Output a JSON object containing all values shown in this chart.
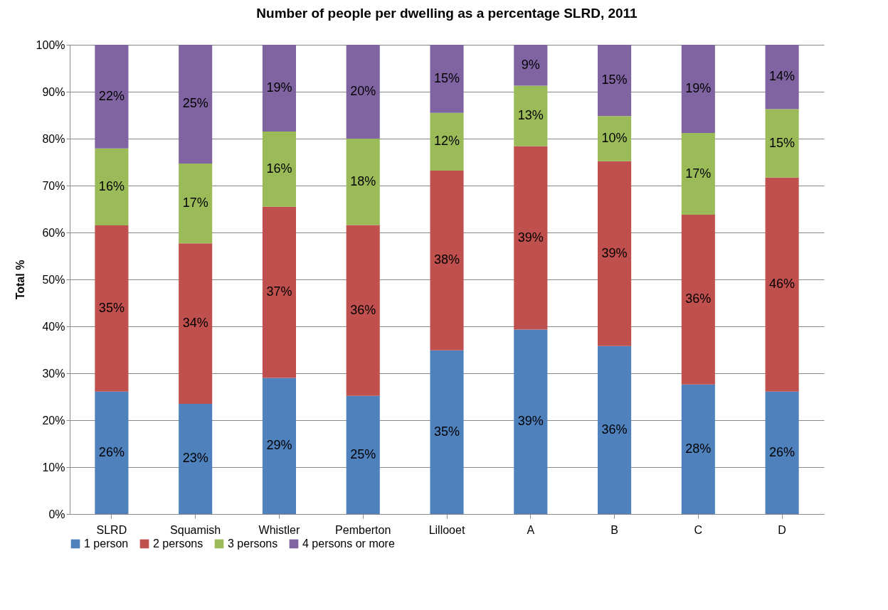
{
  "chart_data": {
    "type": "bar",
    "title": "Number of people per dwelling as a percentage SLRD, 2011",
    "ylabel": "Total %",
    "stacked": true,
    "categories": [
      "SLRD",
      "Squamish",
      "Whistler",
      "Pemberton",
      "Lillooet",
      "A",
      "B",
      "C",
      "D"
    ],
    "series": [
      {
        "name": "1 person",
        "color": "#4f81bd",
        "values": [
          26.1,
          23.5,
          29.0,
          25.2,
          34.9,
          39.3,
          35.8,
          27.6,
          26.1
        ],
        "value_labels": [
          "26%",
          "23%",
          "29%",
          "25%",
          "35%",
          "39%",
          "36%",
          "28%",
          "26%"
        ]
      },
      {
        "name": "2 persons",
        "color": "#c0504d",
        "values": [
          35.4,
          34.2,
          36.5,
          36.4,
          38.3,
          39.1,
          39.4,
          36.2,
          45.6
        ],
        "value_labels": [
          "35%",
          "34%",
          "37%",
          "36%",
          "38%",
          "39%",
          "39%",
          "36%",
          "46%"
        ]
      },
      {
        "name": "3 persons",
        "color": "#9bbb59",
        "values": [
          16.4,
          17.0,
          16.0,
          18.4,
          12.3,
          12.9,
          9.6,
          17.4,
          14.6
        ],
        "value_labels": [
          "16%",
          "17%",
          "16%",
          "18%",
          "12%",
          "13%",
          "10%",
          "17%",
          "15%"
        ]
      },
      {
        "name": "4 persons or more",
        "color": "#8064a2",
        "values": [
          22.1,
          25.3,
          18.5,
          20.0,
          14.5,
          8.7,
          15.2,
          18.8,
          13.7
        ],
        "value_labels": [
          "22%",
          "25%",
          "19%",
          "20%",
          "15%",
          "9%",
          "15%",
          "19%",
          "14%"
        ]
      }
    ],
    "ylim": [
      0,
      100
    ],
    "yticks": [
      {
        "value": 0,
        "label": "0%"
      },
      {
        "value": 10,
        "label": "10%"
      },
      {
        "value": 20,
        "label": "20%"
      },
      {
        "value": 30,
        "label": "30%"
      },
      {
        "value": 40,
        "label": "40%"
      },
      {
        "value": 50,
        "label": "50%"
      },
      {
        "value": 60,
        "label": "60%"
      },
      {
        "value": 70,
        "label": "70%"
      },
      {
        "value": 80,
        "label": "80%"
      },
      {
        "value": 90,
        "label": "90%"
      },
      {
        "value": 100,
        "label": "100%"
      }
    ],
    "grid": "y",
    "legend": "bottom"
  }
}
